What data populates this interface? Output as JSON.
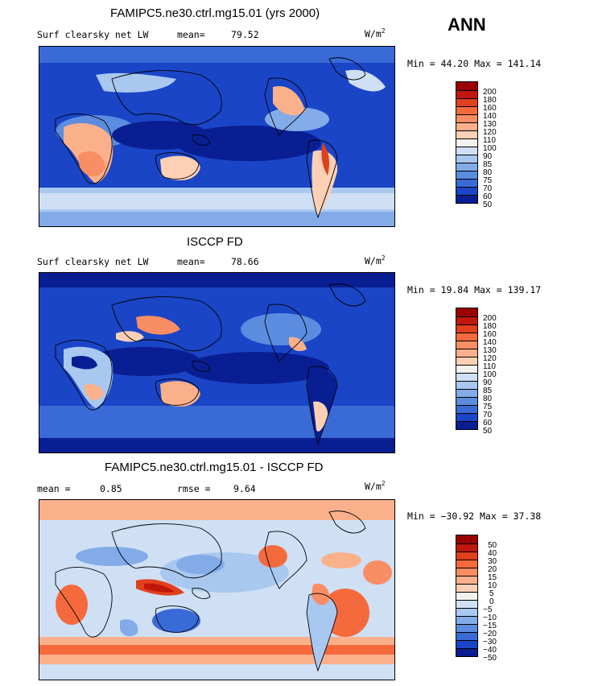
{
  "season_label": "ANN",
  "panels": [
    {
      "title": "FAMIPC5.ne30.ctrl.mg15.01 (yrs 2000)",
      "left_label": "Surf clearsky net LW",
      "stat1_label": "mean=",
      "stat1_value": "79.52",
      "units": "W/m",
      "units_exp": "2",
      "minmax": "Min =  44.20 Max = 141.14",
      "colorbar_levels": [
        "200",
        "180",
        "160",
        "140",
        "130",
        "120",
        "110",
        "100",
        "90",
        "85",
        "80",
        "75",
        "70",
        "60",
        "50"
      ]
    },
    {
      "title": "ISCCP FD",
      "left_label": "Surf clearsky net LW",
      "stat1_label": "mean=",
      "stat1_value": "78.66",
      "units": "W/m",
      "units_exp": "2",
      "minmax": "Min =  19.84 Max = 139.17",
      "colorbar_levels": [
        "200",
        "180",
        "160",
        "140",
        "130",
        "120",
        "110",
        "100",
        "90",
        "85",
        "80",
        "75",
        "70",
        "60",
        "50"
      ]
    },
    {
      "title": "FAMIPC5.ne30.ctrl.mg15.01 - ISCCP FD",
      "left_label": "mean =",
      "left_value": "0.85",
      "stat1_label": "rmse =",
      "stat1_value": "9.64",
      "units": "W/m",
      "units_exp": "2",
      "minmax": "Min = −30.92 Max =  37.38",
      "colorbar_levels": [
        "50",
        "40",
        "30",
        "20",
        "15",
        "10",
        "5",
        "0",
        "−5",
        "−10",
        "−15",
        "−20",
        "−30",
        "−40",
        "−50"
      ]
    }
  ],
  "colors": {
    "scale": [
      "#9a0000",
      "#c0170d",
      "#e0401c",
      "#f56a3c",
      "#f98d63",
      "#fbb08c",
      "#fdd0b6",
      "#f3f1ee",
      "#cfe0f5",
      "#a9c8f0",
      "#82abe8",
      "#5b8ce0",
      "#3a6ad6",
      "#1a45c6",
      "#0a1e93"
    ]
  }
}
